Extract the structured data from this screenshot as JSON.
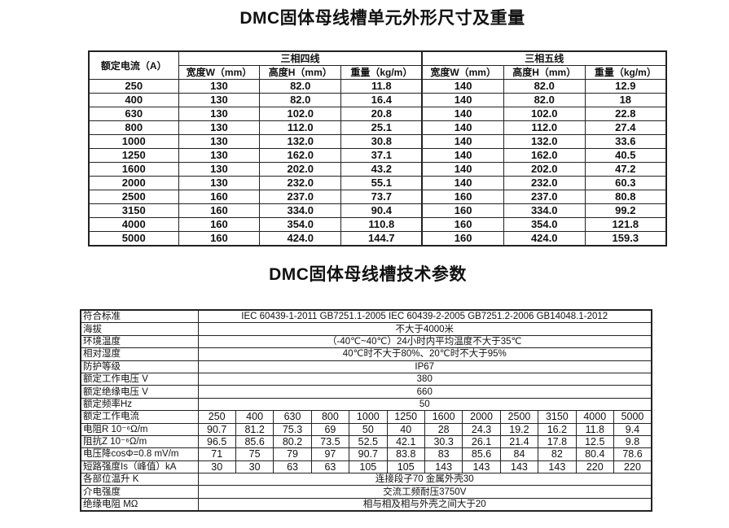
{
  "table1": {
    "title": "DMC固体母线槽单元外形尺寸及重量",
    "rated_current_header": "额定电流（A）",
    "group_4wire": "三相四线",
    "group_5wire": "三相五线",
    "sub_headers": [
      "宽度W（mm）",
      "高度H（mm）",
      "重量（kg/m）",
      "宽度W（mm）",
      "高度H（mm）",
      "重量（kg/m）"
    ],
    "rows": [
      [
        "250",
        "130",
        "82.0",
        "11.8",
        "140",
        "82.0",
        "12.9"
      ],
      [
        "400",
        "130",
        "82.0",
        "16.4",
        "140",
        "82.0",
        "18"
      ],
      [
        "630",
        "130",
        "102.0",
        "20.8",
        "140",
        "102.0",
        "22.8"
      ],
      [
        "800",
        "130",
        "112.0",
        "25.1",
        "140",
        "112.0",
        "27.4"
      ],
      [
        "1000",
        "130",
        "132.0",
        "30.8",
        "140",
        "132.0",
        "33.6"
      ],
      [
        "1250",
        "130",
        "162.0",
        "37.1",
        "140",
        "162.0",
        "40.5"
      ],
      [
        "1600",
        "130",
        "202.0",
        "43.2",
        "140",
        "202.0",
        "47.2"
      ],
      [
        "2000",
        "130",
        "232.0",
        "55.1",
        "140",
        "232.0",
        "60.3"
      ],
      [
        "2500",
        "160",
        "237.0",
        "73.7",
        "160",
        "237.0",
        "80.8"
      ],
      [
        "3150",
        "160",
        "334.0",
        "90.4",
        "160",
        "334.0",
        "99.2"
      ],
      [
        "4000",
        "160",
        "354.0",
        "110.8",
        "160",
        "354.0",
        "121.8"
      ],
      [
        "5000",
        "160",
        "424.0",
        "144.7",
        "160",
        "424.0",
        "159.3"
      ]
    ]
  },
  "table2": {
    "title": "DMC固体母线槽技术参数",
    "span_rows_top": [
      {
        "label": "符合标准",
        "value": "IEC 60439-1-2011 GB7251.1-2005 IEC 60439-2-2005 GB7251.2-2006 GB14048.1-2012"
      },
      {
        "label": "海拔",
        "value": "不大于4000米"
      },
      {
        "label": "环境温度",
        "value": "（-40℃~40℃）24小时内平均温度不大于35℃"
      },
      {
        "label": "相对湿度",
        "value": "40℃时不大于80%、20℃时不大于95%"
      },
      {
        "label": "防护等级",
        "value": "IP67"
      },
      {
        "label": "额定工作电压 V",
        "value": "380"
      },
      {
        "label": "额定绝缘电压 V",
        "value": "660"
      },
      {
        "label": "额定频率Hz",
        "value": "50"
      }
    ],
    "value_rows": [
      {
        "label": "额定工作电流",
        "values": [
          "250",
          "400",
          "630",
          "800",
          "1000",
          "1250",
          "1600",
          "2000",
          "2500",
          "3150",
          "4000",
          "5000"
        ]
      },
      {
        "label": "电阻R 10⁻⁶Ω/m",
        "values": [
          "90.7",
          "81.2",
          "75.3",
          "69",
          "50",
          "40",
          "28",
          "24.3",
          "19.2",
          "16.2",
          "11.8",
          "9.4"
        ]
      },
      {
        "label": "阻抗Z 10⁻⁶Ω/m",
        "values": [
          "96.5",
          "85.6",
          "80.2",
          "73.5",
          "52.5",
          "42.1",
          "30.3",
          "26.1",
          "21.4",
          "17.8",
          "12.5",
          "9.8"
        ]
      },
      {
        "label": "电压降cosΦ=0.8 mV/m",
        "values": [
          "71",
          "75",
          "79",
          "97",
          "90.7",
          "83.8",
          "83",
          "85.6",
          "84",
          "82",
          "80.4",
          "78.6"
        ]
      },
      {
        "label": "短路强度Is（峰值）kA",
        "values": [
          "30",
          "30",
          "63",
          "63",
          "105",
          "105",
          "143",
          "143",
          "143",
          "143",
          "220",
          "220"
        ]
      }
    ],
    "span_rows_bottom": [
      {
        "label": "各部位温升 K",
        "value": "连接段子70 金属外壳30"
      },
      {
        "label": "介电强度",
        "value": "交流工频耐压3750V"
      },
      {
        "label": "绝缘电阻 MΩ",
        "value": "相与相及相与外壳之间大于20"
      }
    ]
  }
}
